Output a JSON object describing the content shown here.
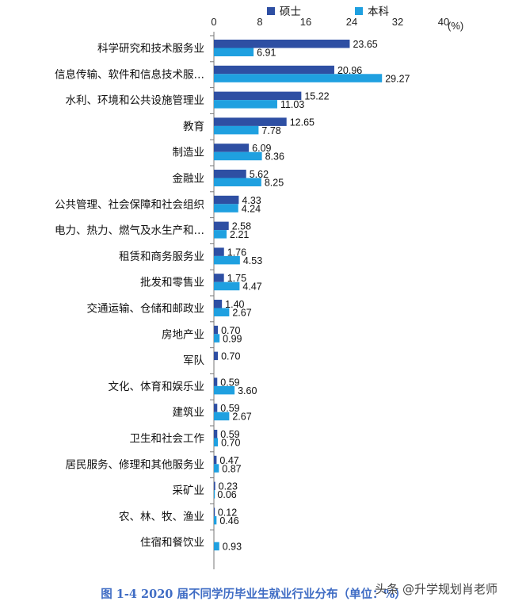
{
  "caption": "图 1-4 2020 届不同学历毕业生就业行业分布（单位：%）",
  "watermark": "头条 @升学规划肖老师",
  "chart_data": {
    "type": "bar",
    "orientation": "horizontal",
    "unit_label": "(%)",
    "xlim": [
      0,
      40
    ],
    "xticks": [
      0,
      8,
      16,
      24,
      32,
      40
    ],
    "legend_position": "top",
    "colors": {
      "硕士": "#2e4fa3",
      "本科": "#1fa0e0"
    },
    "categories": [
      "科学研究和技术服务业",
      "信息传输、软件和信息技术服…",
      "水利、环境和公共设施管理业",
      "教育",
      "制造业",
      "金融业",
      "公共管理、社会保障和社会组织",
      "电力、热力、燃气及水生产和…",
      "租赁和商务服务业",
      "批发和零售业",
      "交通运输、仓储和邮政业",
      "房地产业",
      "军队",
      "文化、体育和娱乐业",
      "建筑业",
      "卫生和社会工作",
      "居民服务、修理和其他服务业",
      "采矿业",
      "农、林、牧、渔业",
      "住宿和餐饮业"
    ],
    "series": [
      {
        "name": "硕士",
        "values": [
          23.65,
          20.96,
          15.22,
          12.65,
          6.09,
          5.62,
          4.33,
          2.58,
          1.76,
          1.75,
          1.4,
          0.7,
          0.7,
          0.59,
          0.59,
          0.59,
          0.47,
          0.23,
          0.12,
          null
        ]
      },
      {
        "name": "本科",
        "values": [
          6.91,
          29.27,
          11.03,
          7.78,
          8.36,
          8.25,
          4.24,
          2.21,
          4.53,
          4.47,
          2.67,
          0.99,
          null,
          3.6,
          2.67,
          0.7,
          0.87,
          0.06,
          0.46,
          0.93
        ]
      }
    ]
  }
}
